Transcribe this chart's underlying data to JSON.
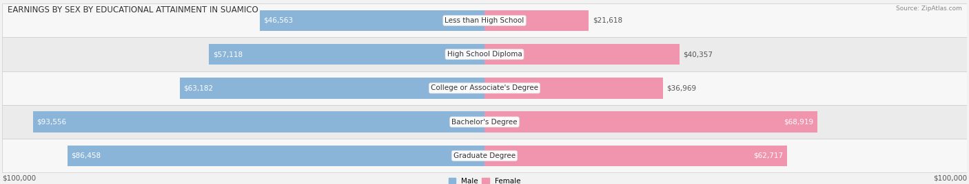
{
  "title": "EARNINGS BY SEX BY EDUCATIONAL ATTAINMENT IN SUAMICO",
  "source": "Source: ZipAtlas.com",
  "categories": [
    "Less than High School",
    "High School Diploma",
    "College or Associate's Degree",
    "Bachelor's Degree",
    "Graduate Degree"
  ],
  "male_values": [
    46563,
    57118,
    63182,
    93556,
    86458
  ],
  "female_values": [
    21618,
    40357,
    36969,
    68919,
    62717
  ],
  "max_value": 100000,
  "male_color": "#8ab4d8",
  "female_color": "#f195ae",
  "row_colors": [
    "#f7f7f7",
    "#ebebeb"
  ],
  "xlabel_left": "$100,000",
  "xlabel_right": "$100,000",
  "legend_male": "Male",
  "legend_female": "Female",
  "title_fontsize": 8.5,
  "label_fontsize": 7.5,
  "category_fontsize": 7.5,
  "bar_height": 0.62,
  "fig_bg": "#f2f2f2"
}
